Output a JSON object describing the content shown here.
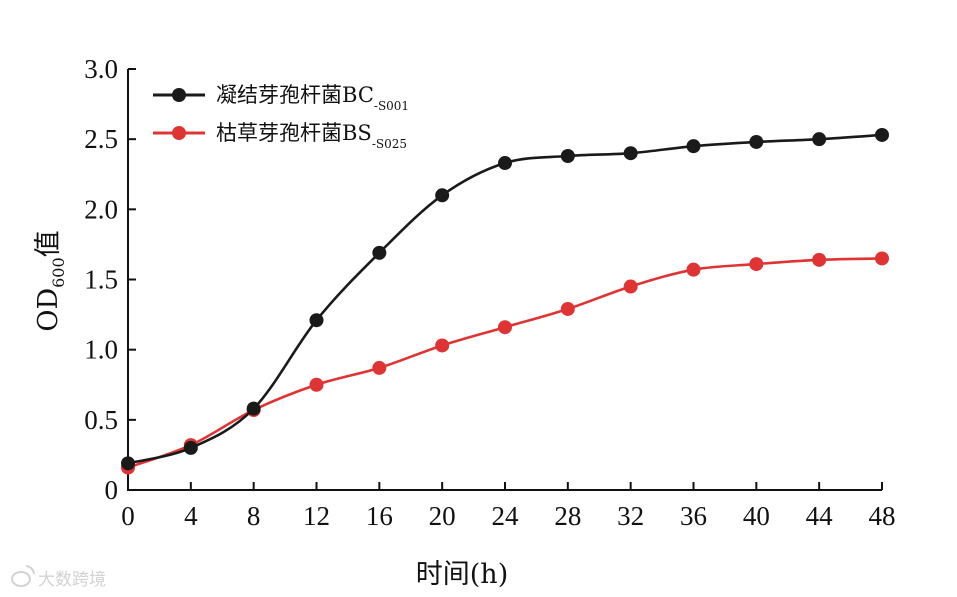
{
  "chart_data": {
    "type": "line",
    "x": [
      0,
      4,
      8,
      12,
      16,
      20,
      24,
      28,
      32,
      36,
      40,
      44,
      48
    ],
    "xlim": [
      0,
      48
    ],
    "ylim": [
      0,
      3.0
    ],
    "x_ticks": [
      "0",
      "4",
      "8",
      "12",
      "16",
      "20",
      "24",
      "28",
      "32",
      "36",
      "40",
      "44",
      "48"
    ],
    "y_ticks": [
      "0",
      "0.5",
      "1.0",
      "1.5",
      "2.0",
      "2.5",
      "3.0"
    ],
    "xlabel": "时间(h)",
    "ylabel": {
      "main": "OD",
      "sub": "600",
      "suffix": "值"
    },
    "legend_position": "top-left",
    "series": [
      {
        "name": "凝结芽孢杆菌BC",
        "name_sub": "-S001",
        "color": "#1a1a1a",
        "values": [
          0.19,
          0.3,
          0.58,
          1.21,
          1.69,
          2.1,
          2.33,
          2.38,
          2.4,
          2.45,
          2.48,
          2.5,
          2.53
        ]
      },
      {
        "name": "枯草芽孢杆菌BS",
        "name_sub": "-S025",
        "color": "#e03434",
        "values": [
          0.16,
          0.32,
          0.57,
          0.75,
          0.87,
          1.03,
          1.16,
          1.29,
          1.45,
          1.57,
          1.61,
          1.64,
          1.65
        ]
      }
    ],
    "grid": false
  },
  "watermark": {
    "text": "大数跨境",
    "icon": "weibo-logo-icon"
  }
}
